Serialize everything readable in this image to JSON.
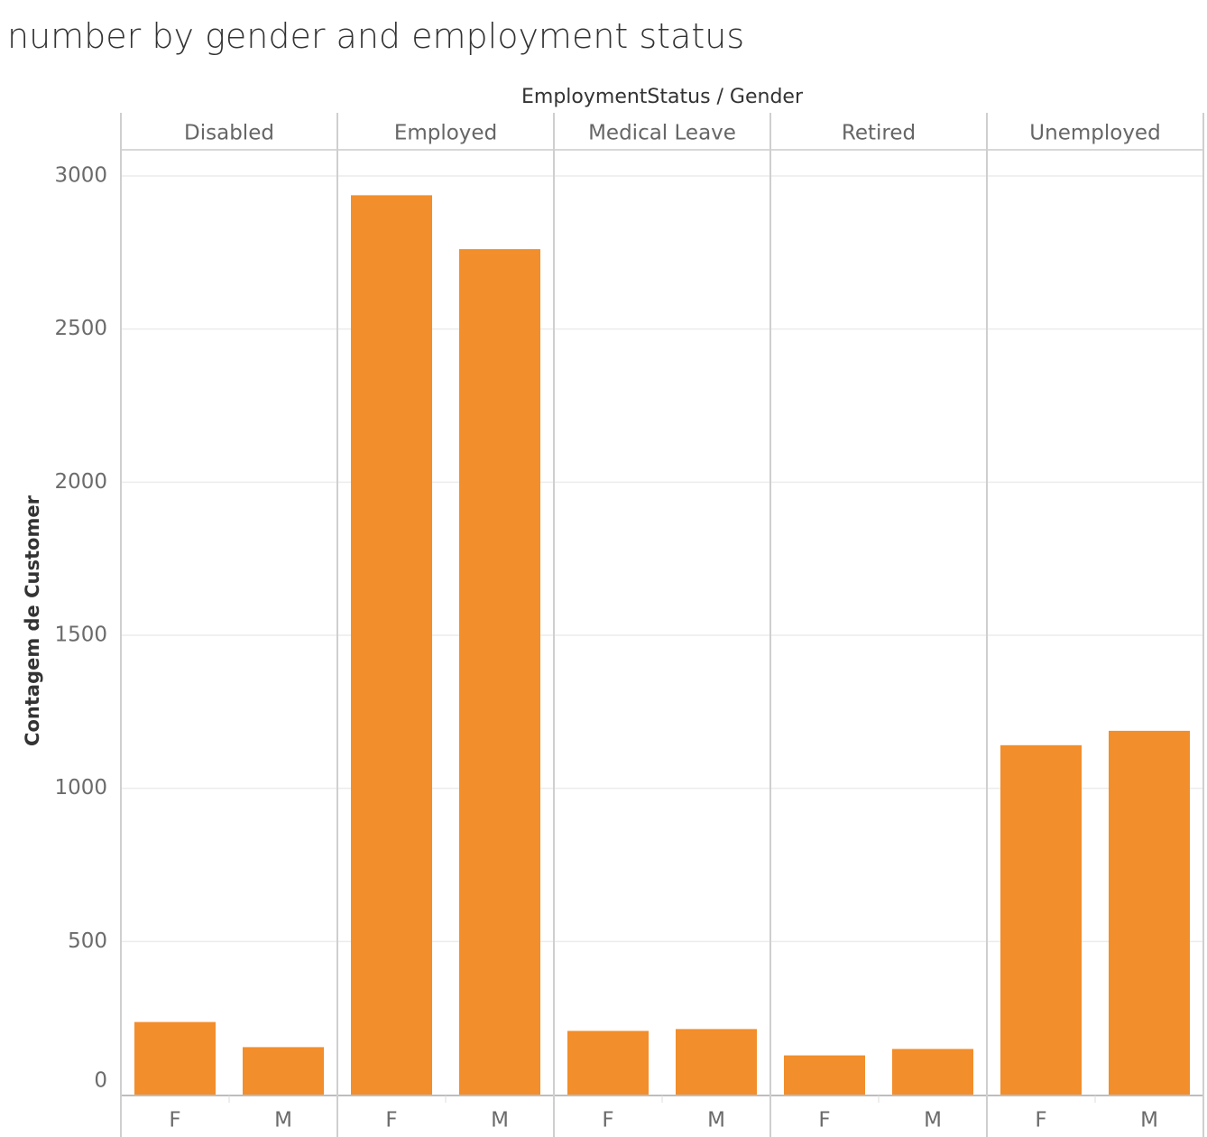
{
  "title": "number by gender and employment status",
  "chart_data": {
    "type": "bar",
    "title": "number by gender and employment status",
    "column_header": "EmploymentStatus / Gender",
    "ylabel": "Contagem de Customer",
    "ylim": [
      0,
      3000
    ],
    "yticks": [
      0,
      500,
      1000,
      1500,
      2000,
      2500,
      3000
    ],
    "grid": true,
    "bar_color": "#f28e2b",
    "groups": [
      {
        "name": "Disabled",
        "categories": [
          "F",
          "M"
        ],
        "values": [
          237,
          155
        ]
      },
      {
        "name": "Employed",
        "categories": [
          "F",
          "M"
        ],
        "values": [
          2937,
          2761
        ]
      },
      {
        "name": "Medical Leave",
        "categories": [
          "F",
          "M"
        ],
        "values": [
          208,
          214
        ]
      },
      {
        "name": "Retired",
        "categories": [
          "F",
          "M"
        ],
        "values": [
          128,
          149
        ]
      },
      {
        "name": "Unemployed",
        "categories": [
          "F",
          "M"
        ],
        "values": [
          1141,
          1188
        ]
      }
    ]
  }
}
